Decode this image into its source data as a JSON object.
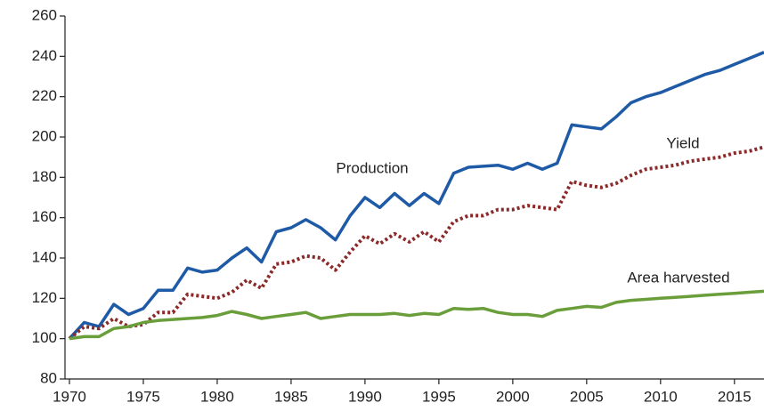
{
  "chart_data": {
    "type": "line",
    "x": [
      1970,
      1971,
      1972,
      1973,
      1974,
      1975,
      1976,
      1977,
      1978,
      1979,
      1980,
      1981,
      1982,
      1983,
      1984,
      1985,
      1986,
      1987,
      1988,
      1989,
      1990,
      1991,
      1992,
      1993,
      1994,
      1995,
      1996,
      1997,
      1998,
      1999,
      2000,
      2001,
      2002,
      2003,
      2004,
      2005,
      2006,
      2007,
      2008,
      2009,
      2010,
      2011,
      2012,
      2013,
      2014,
      2015,
      2016,
      2017
    ],
    "series": [
      {
        "name": "Production",
        "color": "#1f5aa6",
        "dash": "solid",
        "values": [
          100,
          108,
          106,
          117,
          112,
          115,
          124,
          124,
          135,
          133,
          134,
          140,
          145,
          138,
          153,
          155,
          159,
          155,
          149,
          161,
          170,
          165,
          172,
          166,
          172,
          167,
          182,
          185,
          185.5,
          186,
          184,
          187,
          184,
          187,
          206,
          205,
          204,
          210,
          217,
          220,
          222,
          225,
          228,
          231,
          233,
          236,
          239,
          242
        ]
      },
      {
        "name": "Yield",
        "color": "#8b2a2a",
        "dash": "dotted",
        "values": [
          100,
          106,
          105,
          110,
          106,
          107,
          113,
          113,
          122,
          121,
          120,
          123,
          129,
          125,
          137,
          138,
          141,
          140,
          134,
          143,
          151,
          147,
          152,
          148,
          153,
          148,
          158,
          161,
          161,
          164,
          164,
          166,
          165,
          164,
          178,
          176,
          175,
          177,
          181,
          184,
          185,
          186,
          188,
          189,
          190,
          192,
          193,
          195
        ]
      },
      {
        "name": "Area harvested",
        "color": "#6a9e3a",
        "dash": "solid",
        "values": [
          100,
          101,
          101,
          105,
          106,
          108,
          109,
          109.5,
          110,
          110.5,
          111.5,
          113.5,
          112,
          110,
          111,
          112,
          113,
          110,
          111,
          112,
          112,
          112,
          112.5,
          111.5,
          112.5,
          112,
          115,
          114.5,
          115,
          113,
          112,
          112,
          111,
          114,
          115,
          116,
          115.5,
          118,
          119,
          119.5,
          120,
          120.5,
          121,
          121.5,
          122,
          122.5,
          123,
          123.5
        ]
      }
    ],
    "xlim": [
      1969.7,
      2017
    ],
    "xticks": [
      1970,
      1975,
      1980,
      1985,
      1990,
      1995,
      2000,
      2005,
      2010,
      2015
    ],
    "ylim": [
      80,
      260
    ],
    "yticks": [
      80,
      100,
      120,
      140,
      160,
      180,
      200,
      220,
      240,
      260
    ],
    "grid": false
  }
}
